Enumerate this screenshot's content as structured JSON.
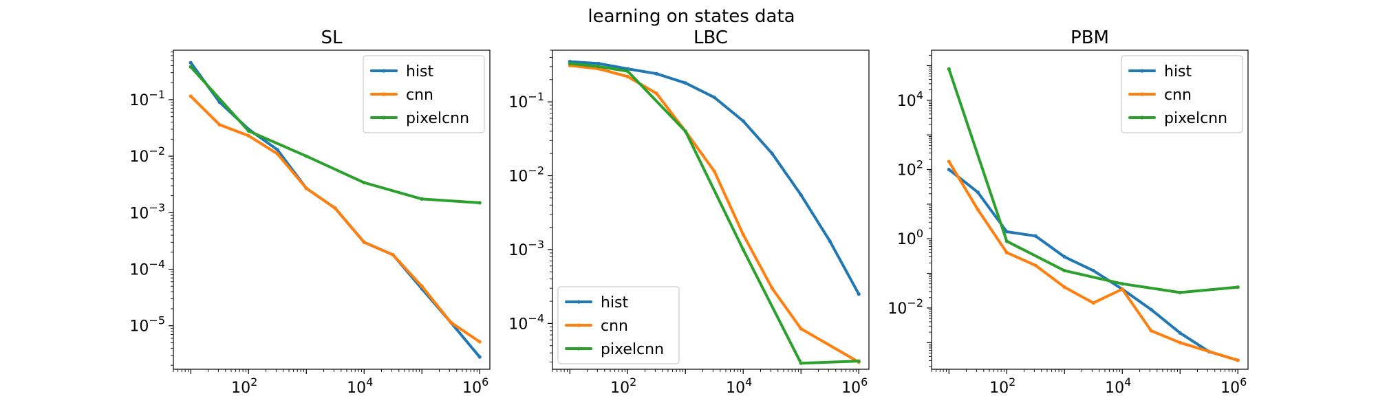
{
  "figure": {
    "title": "learning on states data"
  },
  "chart_data": [
    {
      "type": "line",
      "title": "SL",
      "xscale": "log",
      "yscale": "log",
      "xlim": [
        5,
        1500000
      ],
      "ylim": [
        1.7e-06,
        0.75
      ],
      "xticks": [
        {
          "value": 100,
          "base": "10",
          "exp": "2"
        },
        {
          "value": 10000,
          "base": "10",
          "exp": "4"
        },
        {
          "value": 1000000,
          "base": "10",
          "exp": "6"
        }
      ],
      "yticks": [
        {
          "value": 1e-05,
          "base": "10",
          "exp": "−5"
        },
        {
          "value": 0.0001,
          "base": "10",
          "exp": "−4"
        },
        {
          "value": 0.001,
          "base": "10",
          "exp": "−3"
        },
        {
          "value": 0.01,
          "base": "10",
          "exp": "−2"
        },
        {
          "value": 0.1,
          "base": "10",
          "exp": "−1"
        }
      ],
      "legend": "upper-right",
      "series": [
        {
          "name": "hist",
          "color": "#1f77b4",
          "x": [
            10,
            31.6,
            100,
            316,
            1000,
            3162,
            10000,
            31623,
            100000,
            316228,
            1000000
          ],
          "y": [
            0.45,
            0.09,
            0.03,
            0.013,
            0.0027,
            0.0012,
            0.0003,
            0.00018,
            4.5e-05,
            1.15e-05,
            2.8e-06
          ]
        },
        {
          "name": "cnn",
          "color": "#ff7f0e",
          "x": [
            10,
            31.6,
            100,
            316,
            1000,
            3162,
            10000,
            31623,
            100000,
            316228,
            1000000
          ],
          "y": [
            0.115,
            0.036,
            0.023,
            0.011,
            0.0027,
            0.0012,
            0.0003,
            0.00018,
            5e-05,
            1.15e-05,
            5.2e-06
          ]
        },
        {
          "name": "pixelcnn",
          "color": "#2ca02c",
          "x": [
            10,
            100,
            1000,
            10000,
            100000,
            1000000
          ],
          "y": [
            0.38,
            0.028,
            0.01,
            0.0034,
            0.00175,
            0.0015
          ]
        }
      ]
    },
    {
      "type": "line",
      "title": "LBC",
      "xscale": "log",
      "yscale": "log",
      "xlim": [
        5,
        1500000
      ],
      "ylim": [
        2.4e-05,
        0.5
      ],
      "xticks": [
        {
          "value": 100,
          "base": "10",
          "exp": "2"
        },
        {
          "value": 10000,
          "base": "10",
          "exp": "4"
        },
        {
          "value": 1000000,
          "base": "10",
          "exp": "6"
        }
      ],
      "yticks": [
        {
          "value": 0.0001,
          "base": "10",
          "exp": "−4"
        },
        {
          "value": 0.001,
          "base": "10",
          "exp": "−3"
        },
        {
          "value": 0.01,
          "base": "10",
          "exp": "−2"
        },
        {
          "value": 0.1,
          "base": "10",
          "exp": "−1"
        }
      ],
      "legend": "lower-left",
      "series": [
        {
          "name": "hist",
          "color": "#1f77b4",
          "x": [
            10,
            31.6,
            100,
            316,
            1000,
            3162,
            10000,
            31623,
            100000,
            316228,
            1000000
          ],
          "y": [
            0.35,
            0.33,
            0.28,
            0.24,
            0.18,
            0.115,
            0.055,
            0.02,
            0.0055,
            0.0013,
            0.00025
          ]
        },
        {
          "name": "cnn",
          "color": "#ff7f0e",
          "x": [
            10,
            31.6,
            100,
            316,
            1000,
            3162,
            10000,
            31623,
            100000,
            1000000
          ],
          "y": [
            0.31,
            0.28,
            0.22,
            0.13,
            0.04,
            0.0115,
            0.0016,
            0.0003,
            8.5e-05,
            3e-05
          ]
        },
        {
          "name": "pixelcnn",
          "color": "#2ca02c",
          "x": [
            10,
            31.6,
            100,
            1000,
            10000,
            100000,
            1000000
          ],
          "y": [
            0.33,
            0.3,
            0.26,
            0.04,
            0.001,
            2.9e-05,
            3.1e-05
          ]
        }
      ]
    },
    {
      "type": "line",
      "title": "PBM",
      "xscale": "log",
      "yscale": "log",
      "xlim": [
        5,
        1500000
      ],
      "ylim": [
        0.00017,
        280000
      ],
      "xticks": [
        {
          "value": 100,
          "base": "10",
          "exp": "2"
        },
        {
          "value": 10000,
          "base": "10",
          "exp": "4"
        },
        {
          "value": 1000000,
          "base": "10",
          "exp": "6"
        }
      ],
      "yticks": [
        {
          "value": 0.01,
          "base": "10",
          "exp": "−2"
        },
        {
          "value": 1,
          "base": "10",
          "exp": "0"
        },
        {
          "value": 100,
          "base": "10",
          "exp": "2"
        },
        {
          "value": 10000,
          "base": "10",
          "exp": "4"
        }
      ],
      "legend": "upper-right",
      "series": [
        {
          "name": "hist",
          "color": "#1f77b4",
          "x": [
            10,
            31.6,
            100,
            316,
            1000,
            3162,
            10000,
            31623,
            100000,
            316228,
            1000000
          ],
          "y": [
            100,
            22,
            1.6,
            1.2,
            0.3,
            0.12,
            0.035,
            0.009,
            0.0019,
            0.00055,
            0.00031
          ]
        },
        {
          "name": "cnn",
          "color": "#ff7f0e",
          "x": [
            10,
            31.6,
            100,
            316,
            1000,
            3162,
            10000,
            31623,
            100000,
            1000000
          ],
          "y": [
            170,
            7,
            0.4,
            0.17,
            0.04,
            0.014,
            0.035,
            0.0022,
            0.001,
            0.00031
          ]
        },
        {
          "name": "pixelcnn",
          "color": "#2ca02c",
          "x": [
            10,
            100,
            1000,
            10000,
            100000,
            1000000
          ],
          "y": [
            80000,
            0.85,
            0.12,
            0.05,
            0.028,
            0.04
          ]
        }
      ]
    }
  ]
}
